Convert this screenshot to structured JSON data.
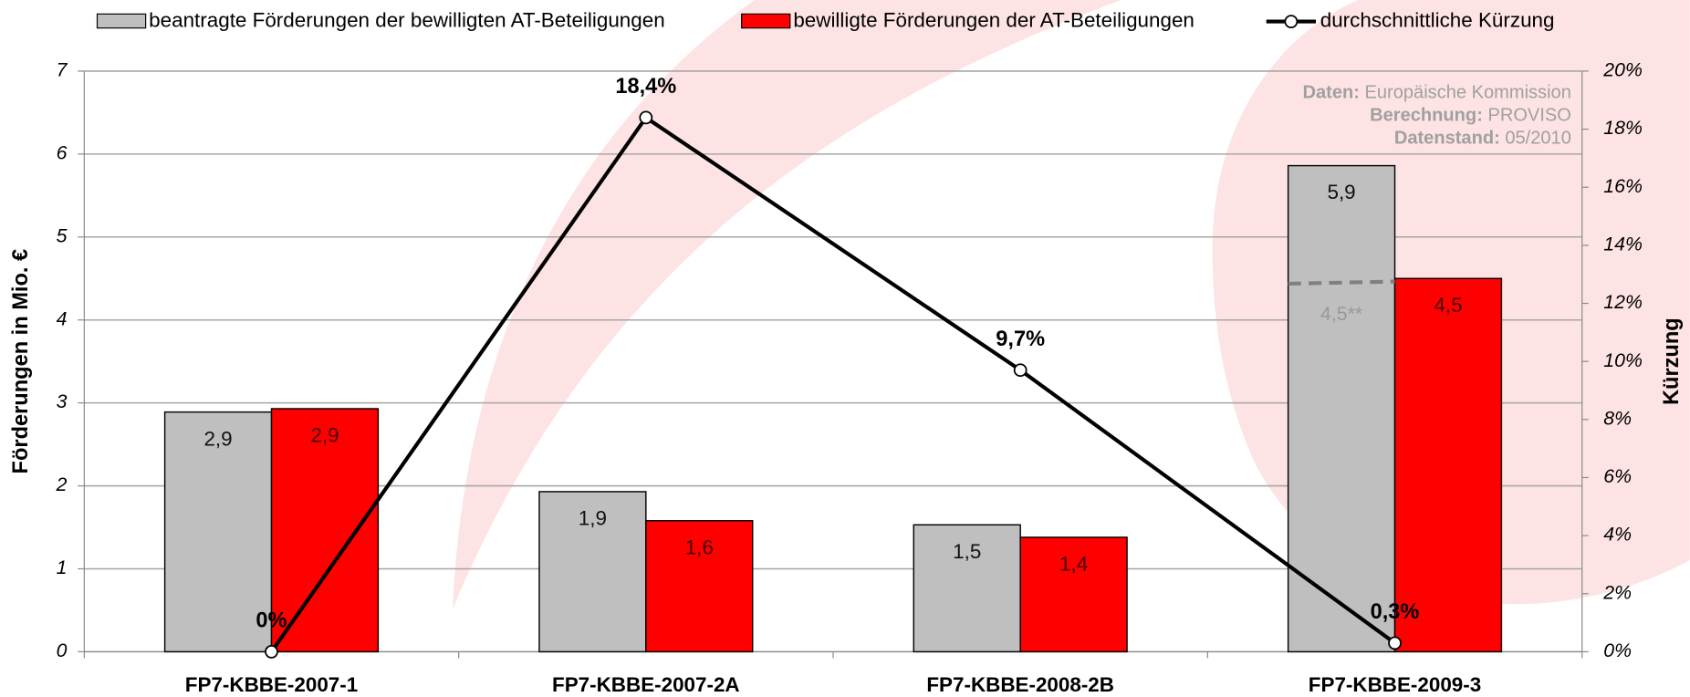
{
  "chart_data": {
    "type": "bar-line",
    "categories": [
      "FP7-KBBE-2007-1",
      "FP7-KBBE-2007-2A",
      "FP7-KBBE-2008-2B",
      "FP7-KBBE-2009-3"
    ],
    "series": [
      {
        "name": "beantragte Förderungen der bewilligten AT-Beteiligungen",
        "color": "#bfbfbf",
        "type": "bar",
        "values": [
          2.89,
          1.93,
          1.53,
          5.86
        ],
        "value_labels": [
          "2,9",
          "1,9",
          "1,5",
          "5,9"
        ]
      },
      {
        "name": "bewilligte Förderungen der AT-Beteiligungen",
        "color": "#ff0000",
        "type": "bar",
        "values": [
          2.93,
          1.58,
          1.38,
          4.5
        ],
        "value_labels": [
          "2,9",
          "1,6",
          "1,4",
          "4,5"
        ]
      },
      {
        "name": "durchschnittliche Kürzung",
        "color": "#000000",
        "type": "line",
        "axis": "y2",
        "values": [
          0,
          18.4,
          9.7,
          0.3
        ],
        "value_labels": [
          "0%",
          "18,4%",
          "9,7%",
          "0,3%"
        ]
      }
    ],
    "ylabel": "Förderungen in Mio. €",
    "y2label": "Kürzung",
    "ylim": [
      0,
      7
    ],
    "yticks": [
      0,
      1,
      2,
      3,
      4,
      5,
      6,
      7
    ],
    "y2lim": [
      0,
      20
    ],
    "y2ticks": [
      {
        "value": 0,
        "label": "0%"
      },
      {
        "value": 2,
        "label": "2%"
      },
      {
        "value": 4,
        "label": "4%"
      },
      {
        "value": 6,
        "label": "6%"
      },
      {
        "value": 8,
        "label": "8%"
      },
      {
        "value": 10,
        "label": "10%"
      },
      {
        "value": 12,
        "label": "12%"
      },
      {
        "value": 14,
        "label": "14%"
      },
      {
        "value": 16,
        "label": "16%"
      },
      {
        "value": 18,
        "label": "18%"
      },
      {
        "value": 20,
        "label": "20%"
      }
    ],
    "grid": true,
    "reference": {
      "value": 4.45,
      "label": "4,5**"
    },
    "source": [
      {
        "label": "Daten:",
        "text": "Europäische Kommission"
      },
      {
        "label": "Berechnung:",
        "text": "PROVISO"
      },
      {
        "label": "Datenstand:",
        "text": "05/2010"
      }
    ]
  }
}
